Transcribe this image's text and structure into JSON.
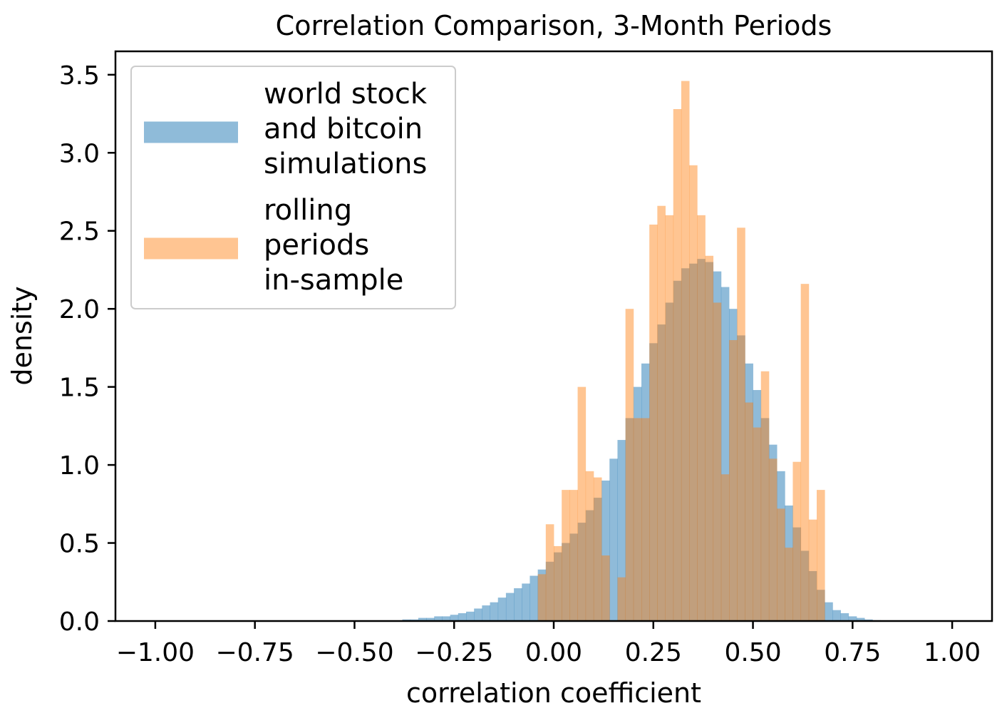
{
  "chart_data": {
    "type": "bar",
    "title": "Correlation Comparison, 3-Month Periods",
    "xlabel": "correlation coefficient",
    "ylabel": "density",
    "xlim": [
      -1.1,
      1.1
    ],
    "ylim": [
      0,
      3.65
    ],
    "bin_width": 0.02,
    "xticks": [
      -1.0,
      -0.75,
      -0.5,
      -0.25,
      0.0,
      0.25,
      0.5,
      0.75,
      1.0
    ],
    "xtick_labels": [
      "−1.00",
      "−0.75",
      "−0.50",
      "−0.25",
      "0.00",
      "0.25",
      "0.50",
      "0.75",
      "1.00"
    ],
    "yticks": [
      0.0,
      0.5,
      1.0,
      1.5,
      2.0,
      2.5,
      3.0,
      3.5
    ],
    "ytick_labels": [
      "0.0",
      "0.5",
      "1.0",
      "1.5",
      "2.0",
      "2.5",
      "3.0",
      "3.5"
    ],
    "grid": false,
    "legend_position": "top-left",
    "series": [
      {
        "name": "world stock and bitcoin simulations",
        "legend_lines": [
          "world stock",
          "and bitcoin",
          "simulations"
        ],
        "color": "#1f77b4",
        "opacity": 0.5,
        "bins": [
          {
            "x": -0.38,
            "y": 0.01
          },
          {
            "x": -0.36,
            "y": 0.01
          },
          {
            "x": -0.34,
            "y": 0.02
          },
          {
            "x": -0.32,
            "y": 0.02
          },
          {
            "x": -0.3,
            "y": 0.03
          },
          {
            "x": -0.28,
            "y": 0.03
          },
          {
            "x": -0.26,
            "y": 0.04
          },
          {
            "x": -0.24,
            "y": 0.05
          },
          {
            "x": -0.22,
            "y": 0.06
          },
          {
            "x": -0.2,
            "y": 0.08
          },
          {
            "x": -0.18,
            "y": 0.1
          },
          {
            "x": -0.16,
            "y": 0.12
          },
          {
            "x": -0.14,
            "y": 0.15
          },
          {
            "x": -0.12,
            "y": 0.18
          },
          {
            "x": -0.1,
            "y": 0.21
          },
          {
            "x": -0.08,
            "y": 0.24
          },
          {
            "x": -0.06,
            "y": 0.29
          },
          {
            "x": -0.04,
            "y": 0.33
          },
          {
            "x": -0.02,
            "y": 0.38
          },
          {
            "x": 0.0,
            "y": 0.44
          },
          {
            "x": 0.02,
            "y": 0.5
          },
          {
            "x": 0.04,
            "y": 0.56
          },
          {
            "x": 0.06,
            "y": 0.63
          },
          {
            "x": 0.08,
            "y": 0.71
          },
          {
            "x": 0.1,
            "y": 0.79
          },
          {
            "x": 0.12,
            "y": 0.9
          },
          {
            "x": 0.14,
            "y": 1.04
          },
          {
            "x": 0.16,
            "y": 1.16
          },
          {
            "x": 0.18,
            "y": 1.3
          },
          {
            "x": 0.2,
            "y": 1.5
          },
          {
            "x": 0.22,
            "y": 1.65
          },
          {
            "x": 0.24,
            "y": 1.78
          },
          {
            "x": 0.26,
            "y": 1.9
          },
          {
            "x": 0.28,
            "y": 2.04
          },
          {
            "x": 0.3,
            "y": 2.18
          },
          {
            "x": 0.32,
            "y": 2.26
          },
          {
            "x": 0.34,
            "y": 2.29
          },
          {
            "x": 0.36,
            "y": 2.32
          },
          {
            "x": 0.38,
            "y": 2.3
          },
          {
            "x": 0.4,
            "y": 2.24
          },
          {
            "x": 0.42,
            "y": 2.14
          },
          {
            "x": 0.44,
            "y": 2.0
          },
          {
            "x": 0.46,
            "y": 1.83
          },
          {
            "x": 0.48,
            "y": 1.65
          },
          {
            "x": 0.5,
            "y": 1.48
          },
          {
            "x": 0.52,
            "y": 1.3
          },
          {
            "x": 0.54,
            "y": 1.13
          },
          {
            "x": 0.56,
            "y": 0.96
          },
          {
            "x": 0.58,
            "y": 0.74
          },
          {
            "x": 0.6,
            "y": 0.6
          },
          {
            "x": 0.62,
            "y": 0.45
          },
          {
            "x": 0.64,
            "y": 0.32
          },
          {
            "x": 0.66,
            "y": 0.2
          },
          {
            "x": 0.68,
            "y": 0.12
          },
          {
            "x": 0.7,
            "y": 0.07
          },
          {
            "x": 0.72,
            "y": 0.05
          },
          {
            "x": 0.74,
            "y": 0.03
          },
          {
            "x": 0.76,
            "y": 0.02
          },
          {
            "x": 0.78,
            "y": 0.01
          },
          {
            "x": 0.8,
            "y": 0.005
          }
        ]
      },
      {
        "name": "rolling periods in-sample",
        "legend_lines": [
          "rolling",
          "periods",
          "in-sample"
        ],
        "color": "#ff7f0e",
        "opacity": 0.45,
        "bins": [
          {
            "x": -0.04,
            "y": 0.3
          },
          {
            "x": -0.02,
            "y": 0.62
          },
          {
            "x": 0.0,
            "y": 0.48
          },
          {
            "x": 0.02,
            "y": 0.84
          },
          {
            "x": 0.04,
            "y": 0.84
          },
          {
            "x": 0.06,
            "y": 1.5
          },
          {
            "x": 0.08,
            "y": 0.96
          },
          {
            "x": 0.1,
            "y": 0.92
          },
          {
            "x": 0.12,
            "y": 0.42
          },
          {
            "x": 0.14,
            "y": 0.0
          },
          {
            "x": 0.16,
            "y": 0.28
          },
          {
            "x": 0.18,
            "y": 2.0
          },
          {
            "x": 0.2,
            "y": 1.3
          },
          {
            "x": 0.22,
            "y": 1.3
          },
          {
            "x": 0.24,
            "y": 2.54
          },
          {
            "x": 0.26,
            "y": 2.66
          },
          {
            "x": 0.28,
            "y": 2.6
          },
          {
            "x": 0.3,
            "y": 3.28
          },
          {
            "x": 0.32,
            "y": 3.46
          },
          {
            "x": 0.34,
            "y": 2.92
          },
          {
            "x": 0.36,
            "y": 2.6
          },
          {
            "x": 0.38,
            "y": 2.34
          },
          {
            "x": 0.4,
            "y": 2.04
          },
          {
            "x": 0.42,
            "y": 0.94
          },
          {
            "x": 0.44,
            "y": 1.8
          },
          {
            "x": 0.46,
            "y": 2.52
          },
          {
            "x": 0.48,
            "y": 1.4
          },
          {
            "x": 0.5,
            "y": 1.24
          },
          {
            "x": 0.52,
            "y": 1.6
          },
          {
            "x": 0.54,
            "y": 1.04
          },
          {
            "x": 0.56,
            "y": 0.72
          },
          {
            "x": 0.58,
            "y": 0.47
          },
          {
            "x": 0.6,
            "y": 1.02
          },
          {
            "x": 0.62,
            "y": 2.16
          },
          {
            "x": 0.64,
            "y": 0.65
          },
          {
            "x": 0.66,
            "y": 0.84
          }
        ]
      }
    ]
  }
}
